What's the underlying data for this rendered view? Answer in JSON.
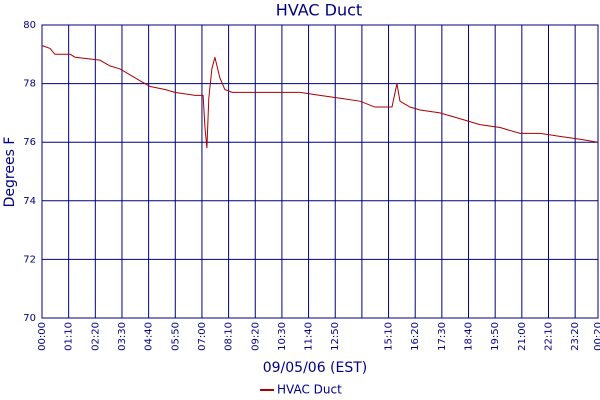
{
  "chart_data": {
    "type": "line",
    "title": "HVAC Duct",
    "x_label": "09/05/06 (EST)",
    "y_label": "Degrees F",
    "x": [
      0,
      21,
      34,
      74,
      87,
      152,
      179,
      205,
      231,
      257,
      284,
      323,
      349,
      402,
      423,
      428,
      433,
      438,
      446,
      454,
      467,
      480,
      499,
      678,
      730,
      783,
      835,
      874,
      919,
      932,
      940,
      966,
      993,
      1045,
      1098,
      1150,
      1203,
      1255,
      1308,
      1360,
      1413,
      1460
    ],
    "series": [
      {
        "name": "HVAC Duct",
        "color": "#aa0000",
        "values": [
          79.3,
          79.2,
          79.0,
          79.0,
          78.9,
          78.8,
          78.6,
          78.5,
          78.3,
          78.1,
          77.9,
          77.8,
          77.7,
          77.6,
          77.6,
          76.5,
          75.8,
          77.5,
          78.5,
          78.9,
          78.2,
          77.8,
          77.7,
          77.7,
          77.6,
          77.5,
          77.4,
          77.2,
          77.2,
          78.0,
          77.4,
          77.2,
          77.1,
          77.0,
          76.8,
          76.6,
          76.5,
          76.3,
          76.3,
          76.2,
          76.1,
          76.0
        ]
      }
    ],
    "xlim": [
      0,
      1460
    ],
    "xticks": [
      {
        "value": 0,
        "label": "00:00"
      },
      {
        "value": 70,
        "label": "01:10"
      },
      {
        "value": 140,
        "label": "02:20"
      },
      {
        "value": 210,
        "label": "03:30"
      },
      {
        "value": 280,
        "label": "04:40"
      },
      {
        "value": 350,
        "label": "05:50"
      },
      {
        "value": 420,
        "label": "07:00"
      },
      {
        "value": 490,
        "label": "08:10"
      },
      {
        "value": 560,
        "label": "09:20"
      },
      {
        "value": 630,
        "label": "10:30"
      },
      {
        "value": 700,
        "label": "11:40"
      },
      {
        "value": 770,
        "label": "12:50"
      },
      {
        "value": 840,
        "label": null
      },
      {
        "value": 910,
        "label": "15:10"
      },
      {
        "value": 980,
        "label": "16:20"
      },
      {
        "value": 1050,
        "label": "17:30"
      },
      {
        "value": 1120,
        "label": "18:40"
      },
      {
        "value": 1190,
        "label": "19:50"
      },
      {
        "value": 1260,
        "label": "21:00"
      },
      {
        "value": 1330,
        "label": "22:10"
      },
      {
        "value": 1400,
        "label": "23:20"
      },
      {
        "value": 1460,
        "label": "00:20"
      }
    ],
    "ylim": [
      70,
      80
    ],
    "yticks": [
      70,
      72,
      74,
      76,
      78,
      80
    ],
    "grid": true,
    "legend": "bottom"
  }
}
